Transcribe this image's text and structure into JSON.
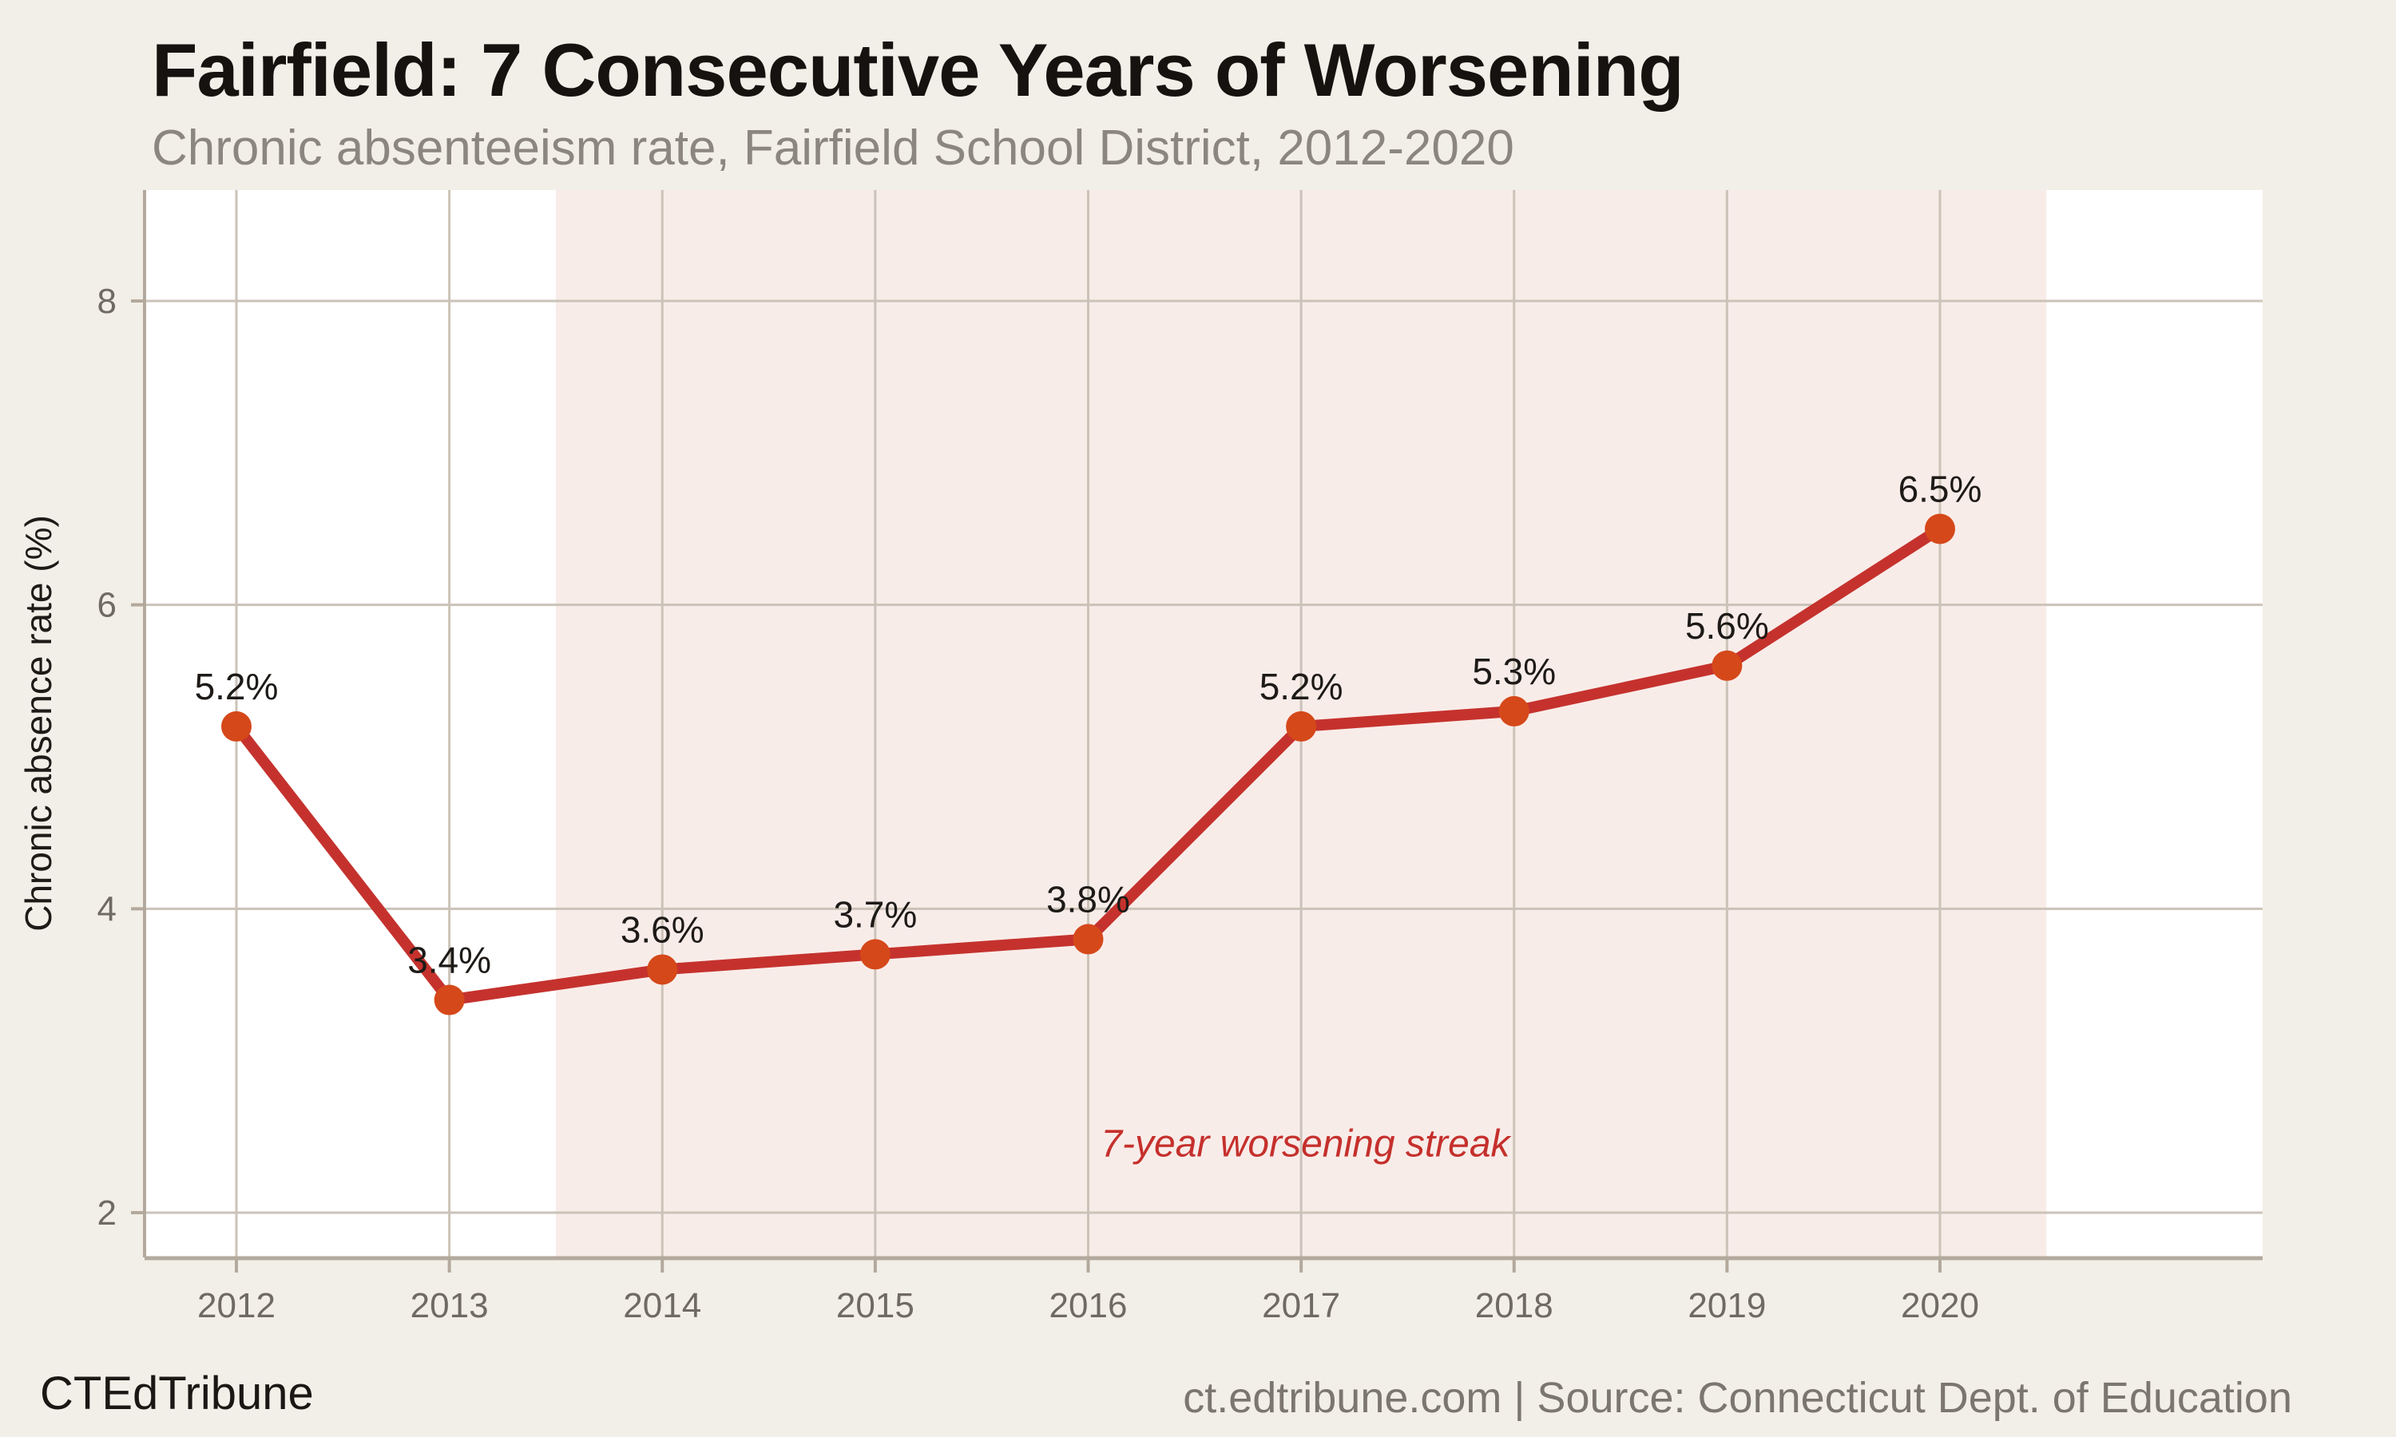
{
  "header": {
    "title": "Fairfield: 7 Consecutive Years of Worsening",
    "subtitle": "Chronic absenteeism rate, Fairfield School District, 2012-2020"
  },
  "footer": {
    "brand": "CTEdTribune",
    "attribution": "ct.edtribune.com | Source: Connecticut Dept. of Education"
  },
  "chart_data": {
    "type": "line",
    "title": "Fairfield: 7 Consecutive Years of Worsening",
    "subtitle": "Chronic absenteeism rate, Fairfield School District, 2012-2020",
    "x": [
      2012,
      2013,
      2014,
      2015,
      2016,
      2017,
      2018,
      2019,
      2020
    ],
    "series": [
      {
        "name": "Chronic absence rate",
        "values": [
          5.2,
          3.4,
          3.6,
          3.7,
          3.8,
          5.2,
          5.3,
          5.6,
          6.5
        ]
      }
    ],
    "point_labels": [
      "5.2%",
      "3.4%",
      "3.6%",
      "3.7%",
      "3.8%",
      "5.2%",
      "5.3%",
      "5.6%",
      "6.5%"
    ],
    "xlabel": "",
    "ylabel": "Chronic absence rate (%)",
    "y_ticks": [
      2,
      4,
      6,
      8
    ],
    "x_ticks": [
      2012,
      2013,
      2014,
      2015,
      2016,
      2017,
      2018,
      2019,
      2020
    ],
    "ylim": [
      1.7,
      8.73
    ],
    "xlim": [
      2011.57,
      2021.52
    ],
    "grid": true,
    "legend": false,
    "shaded_region": {
      "x_start": 2013.5,
      "x_end": 2020.5,
      "color": "#f8ece9"
    },
    "annotation": {
      "text": "7-year worsening streak",
      "x": 2017.02,
      "y": 2.37,
      "style": "italic"
    },
    "colors": {
      "line": "#c5322d",
      "marker": "#d5481a",
      "annotation": "#c5302c",
      "grid": "#cbc3b8",
      "axis": "#b3a99d",
      "tick_text": "#6f6a63",
      "label_text": "#1d1a17",
      "plot_bg": "#ffffff",
      "band": "#f8ece9",
      "page_bg": "#f2efe8"
    }
  }
}
